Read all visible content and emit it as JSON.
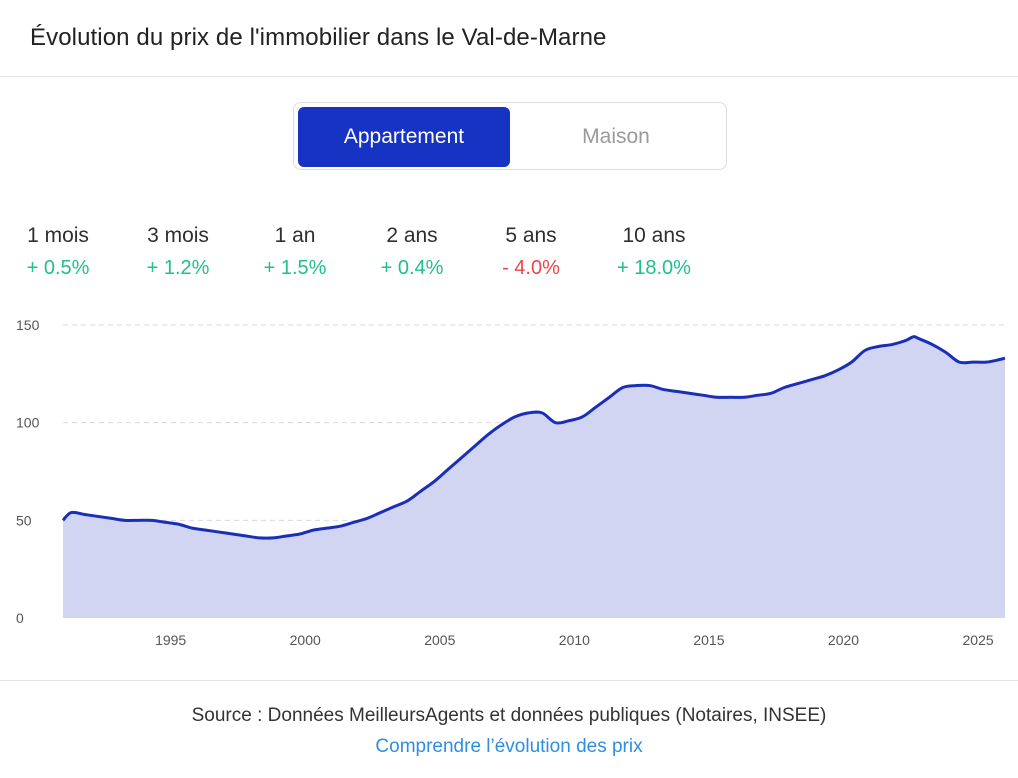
{
  "header": {
    "title": "Évolution du prix de l'immobilier dans le Val-de-Marne"
  },
  "toggle": {
    "active_label": "Appartement",
    "inactive_label": "Maison"
  },
  "stats": [
    {
      "label": "1 mois",
      "value": "+ 0.5%",
      "status": "positive"
    },
    {
      "label": "3 mois",
      "value": "+ 1.2%",
      "status": "positive"
    },
    {
      "label": "1 an",
      "value": "+ 1.5%",
      "status": "positive"
    },
    {
      "label": "2 ans",
      "value": "+ 0.4%",
      "status": "positive"
    },
    {
      "label": "5 ans",
      "value": "- 4.0%",
      "status": "negative"
    },
    {
      "label": "10 ans",
      "value": "+ 18.0%",
      "status": "positive"
    }
  ],
  "colors": {
    "accent": "#1633c4",
    "positive": "#1fbf8f",
    "negative": "#e8474c",
    "line": "#1a2fb8",
    "area": "#d1d5f2",
    "link": "#2f8ee0"
  },
  "chart_data": {
    "type": "area",
    "title": "",
    "xlabel": "",
    "ylabel": "",
    "xlim": [
      1991,
      2026
    ],
    "ylim": [
      0,
      150
    ],
    "x_ticks": [
      "1995",
      "2000",
      "2005",
      "2010",
      "2015",
      "2020",
      "2025"
    ],
    "y_ticks": [
      "0",
      "50",
      "100",
      "150"
    ],
    "grid": "horizontal dashed",
    "series": [
      {
        "name": "Appartement",
        "x": [
          1991,
          1991.3,
          1991.8,
          1992.3,
          1992.8,
          1993.3,
          1993.8,
          1994.3,
          1994.8,
          1995.3,
          1995.8,
          1996.3,
          1996.8,
          1997.3,
          1997.8,
          1998.3,
          1998.8,
          1999.3,
          1999.8,
          2000.3,
          2000.8,
          2001.3,
          2001.8,
          2002.3,
          2002.8,
          2003.3,
          2003.8,
          2004.3,
          2004.8,
          2005.3,
          2005.8,
          2006.3,
          2006.8,
          2007.3,
          2007.8,
          2008.3,
          2008.8,
          2009.3,
          2009.8,
          2010.3,
          2010.8,
          2011.3,
          2011.8,
          2012.3,
          2012.8,
          2013.3,
          2013.8,
          2014.3,
          2014.8,
          2015.3,
          2015.8,
          2016.3,
          2016.8,
          2017.3,
          2017.8,
          2018.3,
          2018.8,
          2019.3,
          2019.8,
          2020.3,
          2020.8,
          2021.3,
          2021.8,
          2022.3,
          2022.6,
          2022.8,
          2023.3,
          2023.8,
          2024.3,
          2024.8,
          2025.3,
          2025.7,
          2026
        ],
        "values": [
          50,
          54,
          53,
          52,
          51,
          50,
          50,
          50,
          49,
          48,
          46,
          45,
          44,
          43,
          42,
          41,
          41,
          42,
          43,
          45,
          46,
          47,
          49,
          51,
          54,
          57,
          60,
          65,
          70,
          76,
          82,
          88,
          94,
          99,
          103,
          105,
          105,
          100,
          101,
          103,
          108,
          113,
          118,
          119,
          119,
          117,
          116,
          115,
          114,
          113,
          113,
          113,
          114,
          115,
          118,
          120,
          122,
          124,
          127,
          131,
          137,
          139,
          140,
          142,
          144,
          143,
          140,
          136,
          131,
          131,
          131,
          132,
          133
        ]
      }
    ]
  },
  "footer": {
    "source": "Source : Données MeilleursAgents et données publiques (Notaires, INSEE)",
    "link": "Comprendre l’évolution des prix"
  }
}
